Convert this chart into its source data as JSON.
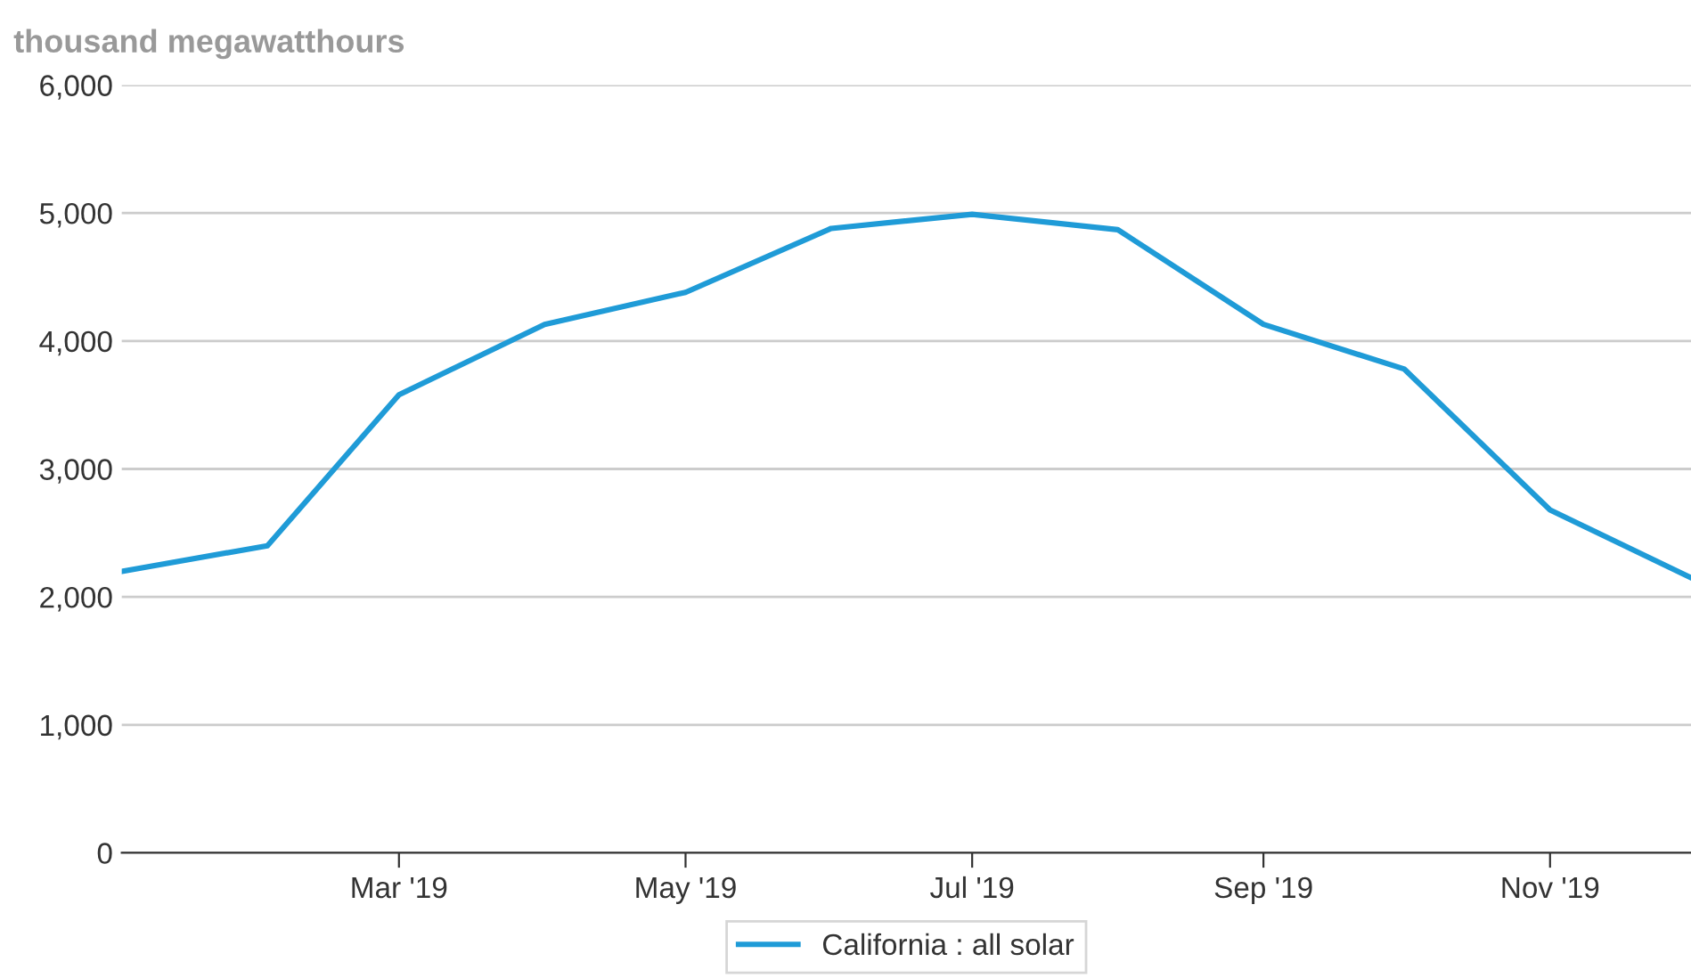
{
  "chart_data": {
    "type": "line",
    "ylabel": "thousand megawatthours",
    "x": [
      "2019-01",
      "2019-02",
      "2019-03",
      "2019-04",
      "2019-05",
      "2019-06",
      "2019-07",
      "2019-08",
      "2019-09",
      "2019-10",
      "2019-11",
      "2019-12"
    ],
    "series": [
      {
        "name": "California : all solar",
        "color": "#1f9bd7",
        "values": [
          2200,
          2400,
          3580,
          4130,
          4380,
          4880,
          4990,
          4870,
          4130,
          3780,
          2680,
          2150
        ]
      }
    ],
    "xlim": [
      "2019-01",
      "2019-12"
    ],
    "xticks": [
      {
        "value": "2019-03",
        "label": "Mar '19"
      },
      {
        "value": "2019-05",
        "label": "May '19"
      },
      {
        "value": "2019-07",
        "label": "Jul '19"
      },
      {
        "value": "2019-09",
        "label": "Sep '19"
      },
      {
        "value": "2019-11",
        "label": "Nov '19"
      }
    ],
    "ylim": [
      0,
      6000
    ],
    "yticks": [
      {
        "value": 0,
        "label": "0"
      },
      {
        "value": 1000,
        "label": "1,000"
      },
      {
        "value": 2000,
        "label": "2,000"
      },
      {
        "value": 3000,
        "label": "3,000"
      },
      {
        "value": 4000,
        "label": "4,000"
      },
      {
        "value": 5000,
        "label": "5,000"
      },
      {
        "value": 6000,
        "label": "6,000"
      }
    ],
    "grid": "y",
    "legend": "bottom",
    "marker": "none",
    "line_style": "solid"
  }
}
